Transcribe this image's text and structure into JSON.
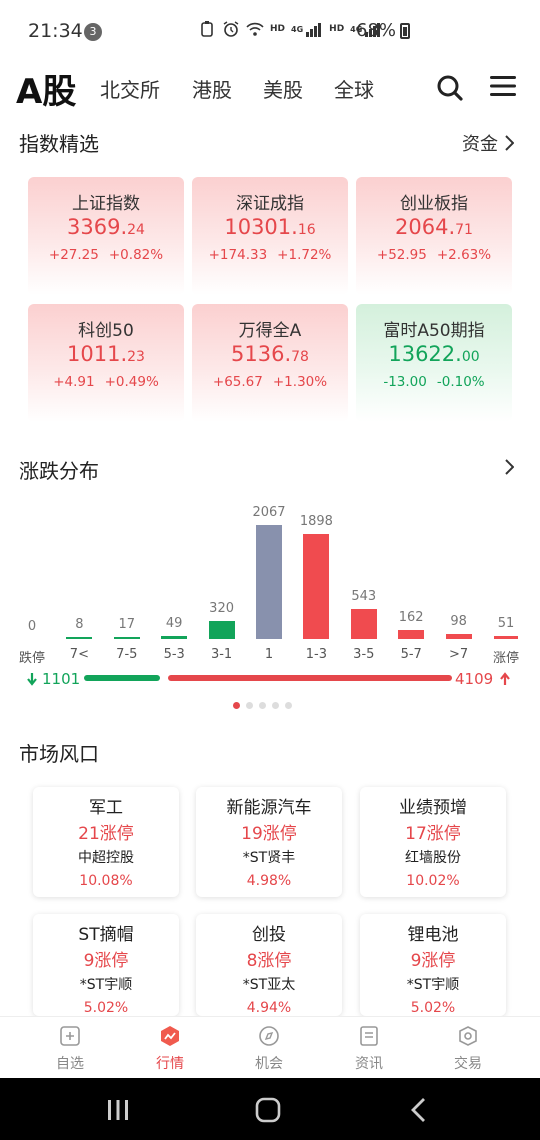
{
  "status_bar": {
    "time": "21:34",
    "notif_count": "3",
    "hd1": "HD",
    "net1": "4G",
    "hd2": "HD",
    "net2": "4G",
    "battery": "68%"
  },
  "top_nav": {
    "main": "A股",
    "tabs": [
      "北交所",
      "港股",
      "美股",
      "全球"
    ]
  },
  "index_section": {
    "title": "指数精选",
    "right": "资金",
    "cards": [
      {
        "name": "上证指数",
        "int": "3369.",
        "dec": "24",
        "change": "+27.25",
        "pct": "+0.82%",
        "trend": "up"
      },
      {
        "name": "深证成指",
        "int": "10301.",
        "dec": "16",
        "change": "+174.33",
        "pct": "+1.72%",
        "trend": "up"
      },
      {
        "name": "创业板指",
        "int": "2064.",
        "dec": "71",
        "change": "+52.95",
        "pct": "+2.63%",
        "trend": "up"
      },
      {
        "name": "科创50",
        "int": "1011.",
        "dec": "23",
        "change": "+4.91",
        "pct": "+0.49%",
        "trend": "up"
      },
      {
        "name": "万得全A",
        "int": "5136.",
        "dec": "78",
        "change": "+65.67",
        "pct": "+1.30%",
        "trend": "up"
      },
      {
        "name": "富时A50期指",
        "int": "13622.",
        "dec": "00",
        "change": "-13.00",
        "pct": "-0.10%",
        "trend": "down"
      }
    ]
  },
  "distribution": {
    "title": "涨跌分布",
    "bars": [
      {
        "label": "跌停",
        "value": "0",
        "color": "#12a45a"
      },
      {
        "label": "7<",
        "value": "8",
        "color": "#12a45a"
      },
      {
        "label": "7-5",
        "value": "17",
        "color": "#12a45a"
      },
      {
        "label": "5-3",
        "value": "49",
        "color": "#12a45a"
      },
      {
        "label": "3-1",
        "value": "320",
        "color": "#12a45a"
      },
      {
        "label": "1",
        "value": "2067",
        "color": "#8891ad"
      },
      {
        "label": "1-3",
        "value": "1898",
        "color": "#f04b4f"
      },
      {
        "label": "3-5",
        "value": "543",
        "color": "#f04b4f"
      },
      {
        "label": "5-7",
        "value": "162",
        "color": "#f04b4f"
      },
      {
        "label": ">7",
        "value": "98",
        "color": "#f04b4f"
      },
      {
        "label": "涨停",
        "value": "51",
        "color": "#f04b4f"
      }
    ],
    "down_total": "1101",
    "up_total": "4109",
    "down_color": "#12a45a",
    "up_color": "#e5474b",
    "page_dots": 5,
    "active_dot": 0
  },
  "market_section": {
    "title": "市场风口",
    "cards": [
      {
        "name": "军工",
        "count": "21涨停",
        "stock": "中超控股",
        "pct": "10.08%"
      },
      {
        "name": "新能源汽车",
        "count": "19涨停",
        "stock": "*ST贤丰",
        "pct": "4.98%"
      },
      {
        "name": "业绩预增",
        "count": "17涨停",
        "stock": "红墙股份",
        "pct": "10.02%"
      },
      {
        "name": "ST摘帽",
        "count": "9涨停",
        "stock": "*ST宇顺",
        "pct": "5.02%"
      },
      {
        "name": "创投",
        "count": "8涨停",
        "stock": "*ST亚太",
        "pct": "4.94%"
      },
      {
        "name": "锂电池",
        "count": "9涨停",
        "stock": "*ST宇顺",
        "pct": "5.02%"
      }
    ]
  },
  "bottom_nav": {
    "items": [
      {
        "label": "自选",
        "icon": "plus-square-icon"
      },
      {
        "label": "行情",
        "icon": "market-chart-icon",
        "active": true
      },
      {
        "label": "机会",
        "icon": "compass-icon"
      },
      {
        "label": "资讯",
        "icon": "news-icon"
      },
      {
        "label": "交易",
        "icon": "trade-icon"
      }
    ]
  },
  "colors": {
    "accent_red": "#e5474b",
    "accent_green": "#12a45a"
  }
}
